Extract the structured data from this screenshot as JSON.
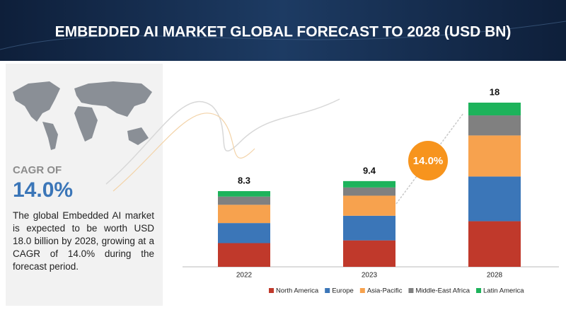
{
  "chart_data": {
    "type": "stacked-bar",
    "title": "EMBEDDED AI MARKET GLOBAL FORECAST TO 2028 (USD BN)",
    "categories": [
      "2022",
      "2023",
      "2028"
    ],
    "series": [
      {
        "name": "North America",
        "color": "#c0392b",
        "values": [
          2.6,
          2.9,
          5.0
        ]
      },
      {
        "name": "Europe",
        "color": "#3b76b8",
        "values": [
          2.2,
          2.7,
          4.9
        ]
      },
      {
        "name": "Asia-Pacific",
        "color": "#f7a24e",
        "values": [
          2.0,
          2.2,
          4.5
        ]
      },
      {
        "name": "Middle-East Africa",
        "color": "#808080",
        "values": [
          0.9,
          0.9,
          2.2
        ]
      },
      {
        "name": "Latin America",
        "color": "#1db35b",
        "values": [
          0.6,
          0.7,
          1.4
        ]
      }
    ],
    "totals": [
      8.3,
      9.4,
      18.0
    ],
    "annotation": "14.0%"
  },
  "sidebar": {
    "cagr_label": "CAGR OF",
    "cagr_value": "14.0%",
    "description": "The global Embedded AI market is expected to be worth USD 18.0 billion by 2028, growing at a CAGR of 14.0% during the forecast period."
  }
}
